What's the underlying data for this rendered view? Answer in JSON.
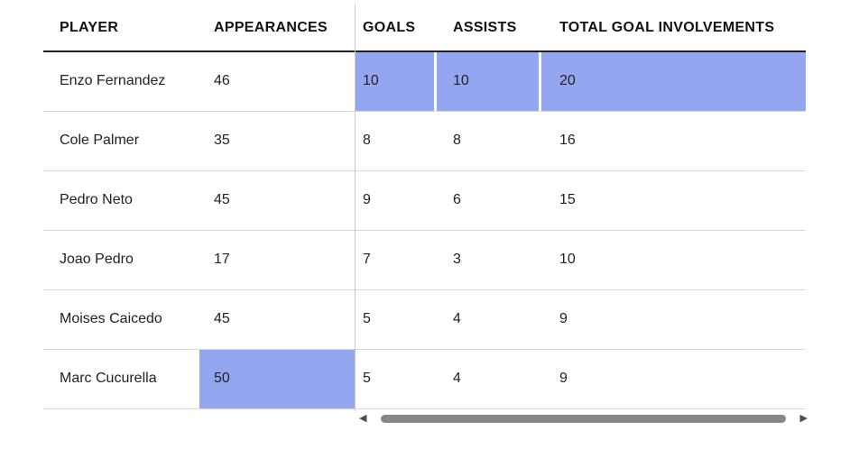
{
  "table": {
    "highlight_color": "#94a6f0",
    "columns": [
      {
        "key": "player",
        "label": "PLAYER"
      },
      {
        "key": "appearances",
        "label": "APPEARANCES"
      },
      {
        "key": "goals",
        "label": "GOALS"
      },
      {
        "key": "assists",
        "label": "ASSISTS"
      },
      {
        "key": "total",
        "label": "TOTAL GOAL INVOLVEMENTS"
      }
    ],
    "rows": [
      {
        "cells": {
          "player": "Enzo Fernandez",
          "appearances": "46",
          "goals": "10",
          "assists": "10",
          "total": "20"
        },
        "highlights": [
          "goals",
          "assists",
          "total"
        ]
      },
      {
        "cells": {
          "player": "Cole Palmer",
          "appearances": "35",
          "goals": "8",
          "assists": "8",
          "total": "16"
        },
        "highlights": []
      },
      {
        "cells": {
          "player": "Pedro Neto",
          "appearances": "45",
          "goals": "9",
          "assists": "6",
          "total": "15"
        },
        "highlights": []
      },
      {
        "cells": {
          "player": "Joao Pedro",
          "appearances": "17",
          "goals": "7",
          "assists": "3",
          "total": "10"
        },
        "highlights": []
      },
      {
        "cells": {
          "player": "Moises Caicedo",
          "appearances": "45",
          "goals": "5",
          "assists": "4",
          "total": "9"
        },
        "highlights": []
      },
      {
        "cells": {
          "player": "Marc Cucurella",
          "appearances": "50",
          "goals": "5",
          "assists": "4",
          "total": "9"
        },
        "highlights": [
          "appearances"
        ]
      }
    ]
  },
  "scrollbar": {
    "left_arrow": "◀",
    "right_arrow": "▶"
  }
}
